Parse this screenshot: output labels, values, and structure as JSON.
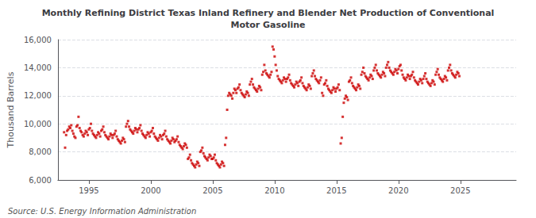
{
  "chart_data": {
    "type": "scatter",
    "title": "Monthly Refining District Texas Inland Refinery and Blender Net Production of Conventional\nMotor Gasoline",
    "ylabel": "Thousand Barrels",
    "annotation": "Source: U.S. Energy Information Administration",
    "color": "#cc0000",
    "marker": "square",
    "grid": true,
    "ylim": [
      6000,
      16000
    ],
    "yticks": [
      {
        "value": 6000,
        "label": "6,000"
      },
      {
        "value": 8000,
        "label": "8,000"
      },
      {
        "value": 10000,
        "label": "10,000"
      },
      {
        "value": 12000,
        "label": "12,000"
      },
      {
        "value": 14000,
        "label": "14,000"
      },
      {
        "value": 16000,
        "label": "16,000"
      }
    ],
    "xlim": [
      1992.5,
      2029.5
    ],
    "xticks": [
      1995,
      2000,
      2005,
      2010,
      2015,
      2020,
      2025
    ],
    "x": [
      1993,
      1993.083333,
      1993.166667,
      1993.25,
      1993.333333,
      1993.416667,
      1993.5,
      1993.583333,
      1993.666667,
      1993.75,
      1993.833333,
      1993.916667,
      1994,
      1994.083333,
      1994.166667,
      1994.25,
      1994.333333,
      1994.416667,
      1994.5,
      1994.583333,
      1994.666667,
      1994.75,
      1994.833333,
      1994.916667,
      1995,
      1995.083333,
      1995.166667,
      1995.25,
      1995.333333,
      1995.416667,
      1995.5,
      1995.583333,
      1995.666667,
      1995.75,
      1995.833333,
      1995.916667,
      1996,
      1996.083333,
      1996.166667,
      1996.25,
      1996.333333,
      1996.416667,
      1996.5,
      1996.583333,
      1996.666667,
      1996.75,
      1996.833333,
      1996.916667,
      1997,
      1997.083333,
      1997.166667,
      1997.25,
      1997.333333,
      1997.416667,
      1997.5,
      1997.583333,
      1997.666667,
      1997.75,
      1997.833333,
      1997.916667,
      1998,
      1998.083333,
      1998.166667,
      1998.25,
      1998.333333,
      1998.416667,
      1998.5,
      1998.583333,
      1998.666667,
      1998.75,
      1998.833333,
      1998.916667,
      1999,
      1999.083333,
      1999.166667,
      1999.25,
      1999.333333,
      1999.416667,
      1999.5,
      1999.583333,
      1999.666667,
      1999.75,
      1999.833333,
      1999.916667,
      2000,
      2000.083333,
      2000.166667,
      2000.25,
      2000.333333,
      2000.416667,
      2000.5,
      2000.583333,
      2000.666667,
      2000.75,
      2000.833333,
      2000.916667,
      2001,
      2001.083333,
      2001.166667,
      2001.25,
      2001.333333,
      2001.416667,
      2001.5,
      2001.583333,
      2001.666667,
      2001.75,
      2001.833333,
      2001.916667,
      2002,
      2002.083333,
      2002.166667,
      2002.25,
      2002.333333,
      2002.416667,
      2002.5,
      2002.583333,
      2002.666667,
      2002.75,
      2002.833333,
      2002.916667,
      2003,
      2003.083333,
      2003.166667,
      2003.25,
      2003.333333,
      2003.416667,
      2003.5,
      2003.583333,
      2003.666667,
      2003.75,
      2003.833333,
      2003.916667,
      2004,
      2004.083333,
      2004.166667,
      2004.25,
      2004.333333,
      2004.416667,
      2004.5,
      2004.583333,
      2004.666667,
      2004.75,
      2004.833333,
      2004.916667,
      2005,
      2005.083333,
      2005.166667,
      2005.25,
      2005.333333,
      2005.416667,
      2005.5,
      2005.583333,
      2005.666667,
      2005.75,
      2005.833333,
      2005.916667,
      2006,
      2006.083333,
      2006.166667,
      2006.25,
      2006.333333,
      2006.416667,
      2006.5,
      2006.583333,
      2006.666667,
      2006.75,
      2006.833333,
      2006.916667,
      2007,
      2007.083333,
      2007.166667,
      2007.25,
      2007.333333,
      2007.416667,
      2007.5,
      2007.583333,
      2007.666667,
      2007.75,
      2007.833333,
      2007.916667,
      2008,
      2008.083333,
      2008.166667,
      2008.25,
      2008.333333,
      2008.416667,
      2008.5,
      2008.583333,
      2008.666667,
      2008.75,
      2008.833333,
      2008.916667,
      2009,
      2009.083333,
      2009.166667,
      2009.25,
      2009.333333,
      2009.416667,
      2009.5,
      2009.583333,
      2009.666667,
      2009.75,
      2009.833333,
      2009.916667,
      2010,
      2010.083333,
      2010.166667,
      2010.25,
      2010.333333,
      2010.416667,
      2010.5,
      2010.583333,
      2010.666667,
      2010.75,
      2010.833333,
      2010.916667,
      2011,
      2011.083333,
      2011.166667,
      2011.25,
      2011.333333,
      2011.416667,
      2011.5,
      2011.583333,
      2011.666667,
      2011.75,
      2011.833333,
      2011.916667,
      2012,
      2012.083333,
      2012.166667,
      2012.25,
      2012.333333,
      2012.416667,
      2012.5,
      2012.583333,
      2012.666667,
      2012.75,
      2012.833333,
      2012.916667,
      2013,
      2013.083333,
      2013.166667,
      2013.25,
      2013.333333,
      2013.416667,
      2013.5,
      2013.583333,
      2013.666667,
      2013.75,
      2013.833333,
      2013.916667,
      2014,
      2014.083333,
      2014.166667,
      2014.25,
      2014.333333,
      2014.416667,
      2014.5,
      2014.583333,
      2014.666667,
      2014.75,
      2014.833333,
      2014.916667,
      2015,
      2015.083333,
      2015.166667,
      2015.25,
      2015.333333,
      2015.416667,
      2015.5,
      2015.583333,
      2015.666667,
      2015.75,
      2015.833333,
      2015.916667,
      2016,
      2016.083333,
      2016.166667,
      2016.25,
      2016.333333,
      2016.416667,
      2016.5,
      2016.583333,
      2016.666667,
      2016.75,
      2016.833333,
      2016.916667,
      2017,
      2017.083333,
      2017.166667,
      2017.25,
      2017.333333,
      2017.416667,
      2017.5,
      2017.583333,
      2017.666667,
      2017.75,
      2017.833333,
      2017.916667,
      2018,
      2018.083333,
      2018.166667,
      2018.25,
      2018.333333,
      2018.416667,
      2018.5,
      2018.583333,
      2018.666667,
      2018.75,
      2018.833333,
      2018.916667,
      2019,
      2019.083333,
      2019.166667,
      2019.25,
      2019.333333,
      2019.416667,
      2019.5,
      2019.583333,
      2019.666667,
      2019.75,
      2019.833333,
      2019.916667,
      2020,
      2020.083333,
      2020.166667,
      2020.25,
      2020.333333,
      2020.416667,
      2020.5,
      2020.583333,
      2020.666667,
      2020.75,
      2020.833333,
      2020.916667,
      2021,
      2021.083333,
      2021.166667,
      2021.25,
      2021.333333,
      2021.416667,
      2021.5,
      2021.583333,
      2021.666667,
      2021.75,
      2021.833333,
      2021.916667,
      2022,
      2022.083333,
      2022.166667,
      2022.25,
      2022.333333,
      2022.416667,
      2022.5,
      2022.583333,
      2022.666667,
      2022.75,
      2022.833333,
      2022.916667,
      2023,
      2023.083333,
      2023.166667,
      2023.25,
      2023.333333,
      2023.416667,
      2023.5,
      2023.583333,
      2023.666667,
      2023.75,
      2023.833333,
      2023.916667,
      2024,
      2024.083333,
      2024.166667,
      2024.25,
      2024.333333,
      2024.416667,
      2024.5,
      2024.583333,
      2024.666667,
      2024.75,
      2024.833333,
      2024.916667
    ],
    "values": [
      9400,
      8300,
      9200,
      9500,
      9600,
      9800,
      9700,
      9900,
      9500,
      9300,
      9100,
      9000,
      9800,
      9900,
      10500,
      9700,
      9500,
      9400,
      9200,
      9100,
      9300,
      9500,
      9400,
      9200,
      9600,
      9700,
      10000,
      9500,
      9300,
      9200,
      9100,
      9000,
      9200,
      9400,
      9300,
      9100,
      9500,
      9600,
      9800,
      9400,
      9200,
      9100,
      9000,
      8900,
      9100,
      9300,
      9200,
      9000,
      9200,
      9300,
      9500,
      9100,
      8900,
      8800,
      8700,
      8600,
      8800,
      9000,
      8900,
      8700,
      9800,
      10000,
      10200,
      9800,
      9600,
      9500,
      9400,
      9300,
      9500,
      9700,
      9600,
      9400,
      9600,
      9700,
      9900,
      9500,
      9300,
      9200,
      9100,
      9000,
      9200,
      9400,
      9300,
      9100,
      9400,
      9500,
      9700,
      9300,
      9100,
      9000,
      8900,
      8800,
      9000,
      9200,
      9100,
      8900,
      9200,
      9300,
      9500,
      9100,
      8900,
      8800,
      8700,
      8600,
      8800,
      9000,
      8900,
      8700,
      8800,
      8900,
      9100,
      8700,
      8500,
      8400,
      8300,
      8200,
      8400,
      8600,
      8500,
      8300,
      7500,
      7600,
      7800,
      7400,
      7200,
      7100,
      7000,
      6900,
      7100,
      7300,
      7200,
      7000,
      8000,
      8100,
      8300,
      7900,
      7700,
      7600,
      7500,
      7400,
      7600,
      7800,
      7700,
      7500,
      7500,
      7600,
      7800,
      7400,
      7200,
      7100,
      7000,
      6900,
      7100,
      7300,
      7200,
      7000,
      8500,
      9000,
      11000,
      12000,
      12200,
      12100,
      12000,
      11800,
      12200,
      12500,
      12400,
      12200,
      12500,
      12600,
      12800,
      12400,
      12200,
      12100,
      12000,
      11900,
      12100,
      12300,
      12200,
      12000,
      12800,
      13000,
      13200,
      12800,
      12600,
      12500,
      12400,
      12300,
      12500,
      12700,
      12600,
      12400,
      13500,
      13700,
      14200,
      13800,
      13600,
      13500,
      13400,
      13300,
      13500,
      13700,
      15500,
      15300,
      14800,
      14200,
      13800,
      13400,
      13200,
      13100,
      13000,
      12900,
      13100,
      13300,
      13200,
      13000,
      13200,
      13300,
      13500,
      13100,
      12900,
      12800,
      12700,
      12600,
      12800,
      13000,
      12900,
      12700,
      13000,
      13100,
      13300,
      12900,
      12700,
      12600,
      12500,
      12400,
      12600,
      12800,
      12700,
      12500,
      13400,
      13600,
      13800,
      13400,
      13200,
      13100,
      13000,
      12900,
      13100,
      13300,
      12200,
      12000,
      12800,
      12900,
      13100,
      12700,
      12500,
      12400,
      12300,
      12200,
      12400,
      12600,
      12500,
      12300,
      12500,
      12600,
      12800,
      12400,
      8600,
      9000,
      10500,
      11500,
      11800,
      12000,
      11900,
      11700,
      13000,
      13100,
      13300,
      12900,
      12700,
      12600,
      12500,
      12400,
      12600,
      12800,
      12700,
      12500,
      13500,
      13700,
      14000,
      13600,
      13400,
      13300,
      13200,
      13100,
      13300,
      13500,
      13400,
      13200,
      13800,
      14000,
      14200,
      13800,
      13600,
      13500,
      13400,
      13300,
      13500,
      13700,
      13600,
      13400,
      14000,
      14200,
      14400,
      14000,
      13800,
      13700,
      13600,
      13500,
      13700,
      13900,
      13800,
      13600,
      13900,
      14100,
      14200,
      13800,
      13500,
      13300,
      13200,
      13100,
      13300,
      13500,
      13400,
      13200,
      13400,
      13500,
      13700,
      13300,
      13100,
      13000,
      12900,
      12800,
      13000,
      13200,
      13100,
      12900,
      13200,
      13400,
      13600,
      13200,
      13000,
      12900,
      12800,
      12700,
      12900,
      13100,
      13000,
      12800,
      13500,
      13700,
      13900,
      13500,
      13300,
      13200,
      13100,
      13000,
      13200,
      13400,
      13300,
      13100,
      13800,
      14000,
      14200,
      13800,
      13600,
      13500,
      13400,
      13300,
      13500,
      13700,
      13600,
      13400
    ]
  }
}
